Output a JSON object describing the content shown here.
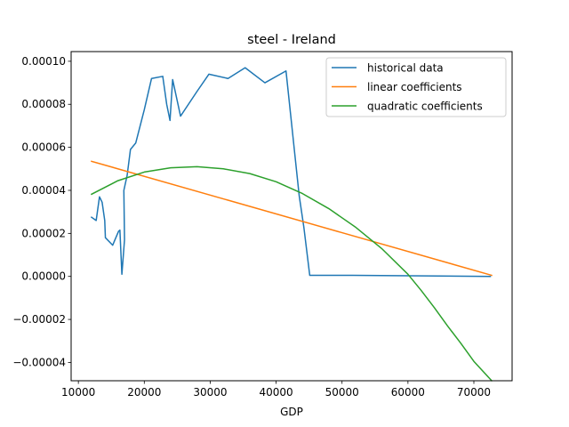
{
  "chart_data": {
    "type": "line",
    "title": "steel - Ireland",
    "xlabel": "GDP",
    "ylabel": "",
    "xlim": [
      8900,
      75800
    ],
    "ylim": [
      -4.85e-05,
      0.0001045
    ],
    "x_ticks": [
      10000,
      20000,
      30000,
      40000,
      50000,
      60000,
      70000
    ],
    "x_tick_labels": [
      "10000",
      "20000",
      "30000",
      "40000",
      "50000",
      "60000",
      "70000"
    ],
    "y_ticks": [
      -4e-05,
      -2e-05,
      0,
      2e-05,
      4e-05,
      6e-05,
      8e-05,
      0.0001
    ],
    "y_tick_labels": [
      "−0.00004",
      "−0.00002",
      "0.00000",
      "0.00002",
      "0.00004",
      "0.00006",
      "0.00008",
      "0.00010"
    ],
    "grid": false,
    "legend_position": "top-right",
    "series": [
      {
        "name": "historical data",
        "color": "#1f77b4",
        "points": [
          [
            12000,
            2.75e-05
          ],
          [
            12700,
            2.6e-05
          ],
          [
            13200,
            3.7e-05
          ],
          [
            13600,
            3.45e-05
          ],
          [
            14000,
            2.6e-05
          ],
          [
            14100,
            1.8e-05
          ],
          [
            15200,
            1.45e-05
          ],
          [
            16100,
            2.1e-05
          ],
          [
            16300,
            2.15e-05
          ],
          [
            16600,
            1e-06
          ],
          [
            17000,
            1.7e-05
          ],
          [
            16900,
            4e-05
          ],
          [
            17400,
            4.7e-05
          ],
          [
            17900,
            5.9e-05
          ],
          [
            18700,
            6.2e-05
          ],
          [
            20000,
            7.75e-05
          ],
          [
            21100,
            9.2e-05
          ],
          [
            22800,
            9.3e-05
          ],
          [
            23400,
            8e-05
          ],
          [
            23900,
            7.25e-05
          ],
          [
            24300,
            9.15e-05
          ],
          [
            25500,
            7.45e-05
          ],
          [
            28000,
            8.6e-05
          ],
          [
            29800,
            9.4e-05
          ],
          [
            32700,
            9.2e-05
          ],
          [
            35300,
            9.7e-05
          ],
          [
            38300,
            9e-05
          ],
          [
            41500,
            9.55e-05
          ],
          [
            43500,
            3.75e-05
          ],
          [
            44200,
            2.3e-05
          ],
          [
            45100,
            5e-07
          ],
          [
            51600,
            5e-07
          ],
          [
            72500,
            0.0
          ]
        ]
      },
      {
        "name": "linear coefficients",
        "color": "#ff7f0e",
        "points": [
          [
            12000,
            5.35e-05
          ],
          [
            72700,
            5e-07
          ]
        ]
      },
      {
        "name": "quadratic coefficients",
        "color": "#2ca02c",
        "points": [
          [
            12000,
            3.82e-05
          ],
          [
            16000,
            4.45e-05
          ],
          [
            20000,
            4.85e-05
          ],
          [
            24000,
            5.05e-05
          ],
          [
            28000,
            5.1e-05
          ],
          [
            32000,
            5e-05
          ],
          [
            36000,
            4.78e-05
          ],
          [
            40000,
            4.4e-05
          ],
          [
            44000,
            3.85e-05
          ],
          [
            48000,
            3.15e-05
          ],
          [
            52000,
            2.3e-05
          ],
          [
            56000,
            1.3e-05
          ],
          [
            60000,
            1e-06
          ],
          [
            62000,
            -6.5e-06
          ],
          [
            64000,
            -1.45e-05
          ],
          [
            66000,
            -2.3e-05
          ],
          [
            68000,
            -3.1e-05
          ],
          [
            70000,
            -3.95e-05
          ],
          [
            72700,
            -4.85e-05
          ]
        ]
      }
    ]
  }
}
